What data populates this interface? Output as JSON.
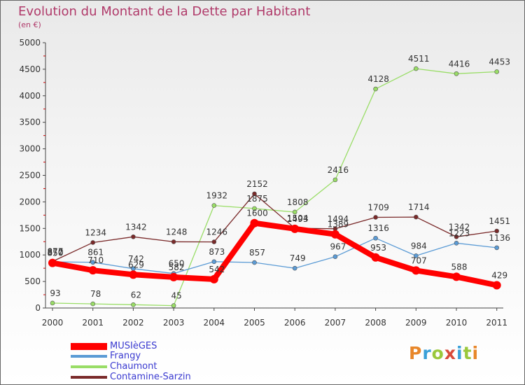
{
  "chart_data": {
    "type": "line",
    "title": "Evolution du Montant de la Dette par Habitant",
    "subtitle": "(en €)",
    "categories": [
      "2000",
      "2001",
      "2002",
      "2003",
      "2004",
      "2005",
      "2006",
      "2007",
      "2008",
      "2009",
      "2010",
      "2011"
    ],
    "ylim": [
      0,
      5000
    ],
    "yticks": [
      "0",
      "500",
      "1000",
      "1500",
      "2000",
      "2500",
      "3000",
      "3500",
      "4000",
      "4500",
      "5000"
    ],
    "grid": false,
    "legend_position": "bottom-left",
    "series": [
      {
        "name": "MUSIèGES",
        "color": "#ff0000",
        "values": [
          850,
          710,
          629,
          582,
          542,
          1600,
          1493,
          1389,
          953,
          707,
          588,
          429
        ],
        "labels": [
          "850",
          "710",
          "629",
          "582",
          "542",
          "1600",
          "1493",
          "1389",
          "953",
          "707",
          "588",
          "429"
        ]
      },
      {
        "name": "Frangy",
        "color": "#5b9bd5",
        "values": [
          870,
          861,
          742,
          650,
          873,
          857,
          749,
          967,
          1316,
          984,
          1223,
          1136
        ],
        "labels": [
          "870",
          "861",
          "742",
          "650",
          "873",
          "857",
          "749",
          "967",
          "1316",
          "984",
          "1223",
          "1136"
        ]
      },
      {
        "name": "Chaumont",
        "color": "#99dd66",
        "values": [
          93,
          78,
          62,
          45,
          1932,
          1875,
          1808,
          2416,
          4128,
          4511,
          4416,
          4453
        ],
        "labels": [
          "93",
          "78",
          "62",
          "45",
          "1932",
          "1875",
          "1808",
          "2416",
          "4128",
          "4511",
          "4416",
          "4453"
        ]
      },
      {
        "name": "Contamine-Sarzin",
        "color": "#7a2a2a",
        "values": [
          877,
          1234,
          1342,
          1248,
          1246,
          2152,
          1504,
          1494,
          1709,
          1714,
          1342,
          1451
        ],
        "labels": [
          "877",
          "1234",
          "1342",
          "1248",
          "1246",
          "2152",
          "1504",
          "1494",
          "1709",
          "1714",
          "1342",
          "1451"
        ]
      }
    ]
  },
  "logo": {
    "text": "Proxiti",
    "colors": [
      "#e8872a",
      "#3aa0d8",
      "#9ac83c",
      "#d84a3a",
      "#3aa0d8",
      "#9ac83c",
      "#e8872a"
    ]
  }
}
